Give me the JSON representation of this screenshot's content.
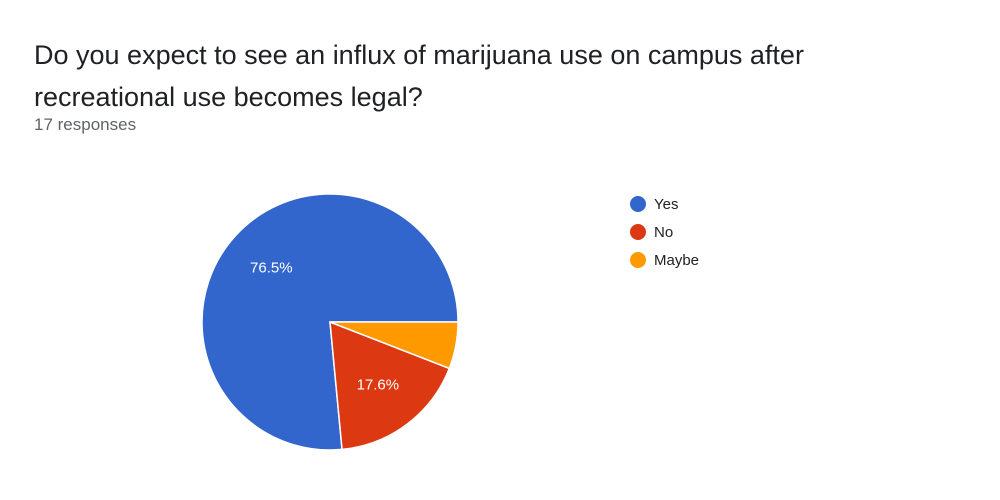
{
  "question": {
    "title": "Do you expect to see an influx of marijuana use on campus after recreational use becomes legal?",
    "responses": "17 responses"
  },
  "chart_data": {
    "type": "pie",
    "categories": [
      "Yes",
      "No",
      "Maybe"
    ],
    "values": [
      76.5,
      17.6,
      5.9
    ],
    "slice_labels": [
      "76.5%",
      "17.6%",
      ""
    ],
    "colors": [
      "#3366cc",
      "#dc3912",
      "#ff9900"
    ],
    "legend_position": "right"
  }
}
